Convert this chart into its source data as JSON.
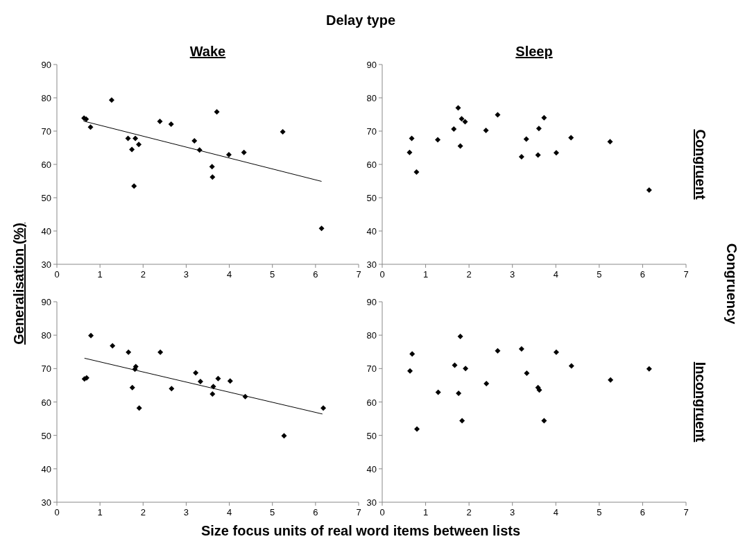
{
  "chart_data": [
    {
      "type": "scatter",
      "title": "Wake",
      "ylabel": "Generalisation  (%)",
      "annotations": [
        "Delay type"
      ],
      "marker": "diamond",
      "xlim": [
        0,
        7
      ],
      "xticks": [
        0,
        1,
        2,
        3,
        4,
        5,
        6,
        7
      ],
      "ylim": [
        30,
        90
      ],
      "yticks": [
        30,
        40,
        50,
        60,
        70,
        80,
        90
      ],
      "series": [
        {
          "color": "#000000",
          "x": [
            0.63,
            0.68,
            0.78,
            1.27,
            1.65,
            1.74,
            1.82,
            1.79,
            1.9,
            2.39,
            2.65,
            3.19,
            3.31,
            3.6,
            3.61,
            3.71,
            3.99,
            4.34,
            5.24,
            6.14
          ],
          "values": [
            73.9,
            73.6,
            71.2,
            79.3,
            67.8,
            64.5,
            67.8,
            53.5,
            66.0,
            72.9,
            72.1,
            67.1,
            64.3,
            59.3,
            56.2,
            75.8,
            62.9,
            63.6,
            69.8,
            40.8
          ]
        },
        {
          "type": "line",
          "marker": "none",
          "color": "#000000",
          "x": [
            0.62,
            6.14
          ],
          "values": [
            73.0,
            54.9
          ]
        }
      ]
    },
    {
      "type": "scatter",
      "title": "Sleep",
      "y2label": "Congruent",
      "annotations": [
        "Congruency"
      ],
      "marker": "diamond",
      "xlim": [
        0,
        7
      ],
      "xticks": [
        0,
        1,
        2,
        3,
        4,
        5,
        6,
        7
      ],
      "ylim": [
        30,
        90
      ],
      "yticks": [
        30,
        40,
        50,
        60,
        70,
        80,
        90
      ],
      "series": [
        {
          "color": "#000000",
          "x": [
            0.63,
            0.68,
            0.79,
            1.28,
            1.65,
            1.75,
            1.8,
            1.83,
            1.91,
            2.39,
            2.66,
            3.21,
            3.32,
            3.59,
            3.61,
            3.73,
            4.01,
            4.35,
            5.25,
            6.15
          ],
          "values": [
            63.6,
            67.8,
            57.7,
            67.4,
            70.6,
            77.0,
            65.5,
            73.7,
            72.8,
            70.2,
            74.9,
            62.3,
            67.6,
            62.8,
            70.8,
            74.0,
            63.5,
            68.0,
            66.8,
            52.3
          ]
        }
      ]
    },
    {
      "type": "scatter",
      "xlabel": "Size focus units of real word items between lists",
      "marker": "diamond",
      "xlim": [
        0,
        7
      ],
      "xticks": [
        0,
        1,
        2,
        3,
        4,
        5,
        6,
        7
      ],
      "ylim": [
        30,
        90
      ],
      "yticks": [
        30,
        40,
        50,
        60,
        70,
        80,
        90
      ],
      "series": [
        {
          "color": "#000000",
          "x": [
            0.64,
            0.69,
            0.79,
            1.29,
            1.66,
            1.75,
            1.81,
            1.83,
            1.91,
            2.4,
            2.66,
            3.22,
            3.33,
            3.61,
            3.63,
            3.74,
            4.02,
            4.37,
            5.27,
            6.18
          ],
          "values": [
            66.9,
            67.2,
            79.9,
            76.8,
            74.9,
            64.3,
            69.8,
            70.6,
            58.2,
            74.9,
            64.0,
            68.7,
            66.1,
            62.4,
            64.6,
            67.0,
            66.3,
            61.6,
            49.9,
            58.2
          ]
        },
        {
          "type": "line",
          "marker": "none",
          "color": "#000000",
          "x": [
            0.64,
            6.16
          ],
          "values": [
            73.1,
            56.4
          ]
        }
      ]
    },
    {
      "type": "scatter",
      "y2label": "Incongruent",
      "marker": "diamond",
      "xlim": [
        0,
        7
      ],
      "xticks": [
        0,
        1,
        2,
        3,
        4,
        5,
        6,
        7
      ],
      "ylim": [
        30,
        90
      ],
      "yticks": [
        30,
        40,
        50,
        60,
        70,
        80,
        90
      ],
      "series": [
        {
          "color": "#000000",
          "x": [
            0.64,
            0.69,
            0.8,
            1.29,
            1.67,
            1.76,
            1.8,
            1.84,
            1.92,
            2.4,
            2.66,
            3.21,
            3.33,
            3.59,
            3.62,
            3.73,
            4.01,
            4.36,
            5.26,
            6.15
          ],
          "values": [
            69.3,
            74.4,
            51.9,
            62.9,
            71.0,
            62.6,
            79.6,
            54.4,
            70.0,
            65.5,
            75.3,
            75.9,
            68.6,
            64.3,
            63.6,
            54.4,
            74.9,
            70.8,
            66.6,
            69.9
          ]
        }
      ]
    }
  ]
}
